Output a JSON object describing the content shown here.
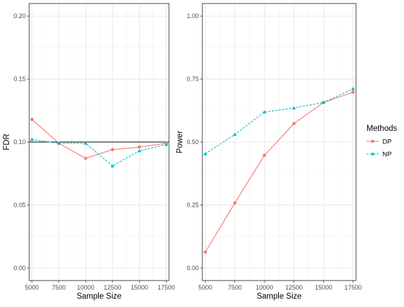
{
  "chart_data": [
    {
      "type": "line",
      "x": [
        5000,
        7500,
        10000,
        12500,
        15000,
        17500
      ],
      "xlabel": "Sample Size",
      "ylabel": "FDR",
      "xlim": [
        4750,
        17750
      ],
      "ylim": [
        -0.01,
        0.21
      ],
      "xticks": [
        "5000",
        "7500",
        "10000",
        "12500",
        "15000",
        "17500"
      ],
      "yticks": [
        "0.00",
        "0.05",
        "0.10",
        "0.15",
        "0.20"
      ],
      "reference_line_y": 0.1,
      "grid": true,
      "series": [
        {
          "name": "DP",
          "values": [
            0.118,
            0.099,
            0.087,
            0.094,
            0.096,
            0.099
          ],
          "color": "#F8766D",
          "linestyle": "solid",
          "marker": "circle"
        },
        {
          "name": "NP",
          "values": [
            0.102,
            0.099,
            0.099,
            0.081,
            0.093,
            0.098
          ],
          "color": "#00BFC4",
          "linestyle": "dashed",
          "marker": "triangle"
        }
      ]
    },
    {
      "type": "line",
      "x": [
        5000,
        7500,
        10000,
        12500,
        15000,
        17500
      ],
      "xlabel": "Sample Size",
      "ylabel": "Power",
      "xlim": [
        4750,
        17750
      ],
      "ylim": [
        -0.05,
        1.05
      ],
      "xticks": [
        "5000",
        "7500",
        "10000",
        "12500",
        "15000",
        "17500"
      ],
      "yticks": [
        "0.00",
        "0.25",
        "0.50",
        "0.75",
        "1.00"
      ],
      "grid": true,
      "series": [
        {
          "name": "DP",
          "values": [
            0.063,
            0.258,
            0.447,
            0.573,
            0.657,
            0.698
          ],
          "color": "#F8766D",
          "linestyle": "solid",
          "marker": "circle"
        },
        {
          "name": "NP",
          "values": [
            0.453,
            0.53,
            0.619,
            0.635,
            0.657,
            0.711
          ],
          "color": "#00BFC4",
          "linestyle": "dashed",
          "marker": "triangle"
        }
      ]
    }
  ],
  "legend": {
    "title": "Methods",
    "placement": "right",
    "items": [
      {
        "label": "DP",
        "color": "#F8766D",
        "marker": "circle"
      },
      {
        "label": "NP",
        "color": "#00BFC4",
        "marker": "triangle"
      }
    ]
  }
}
